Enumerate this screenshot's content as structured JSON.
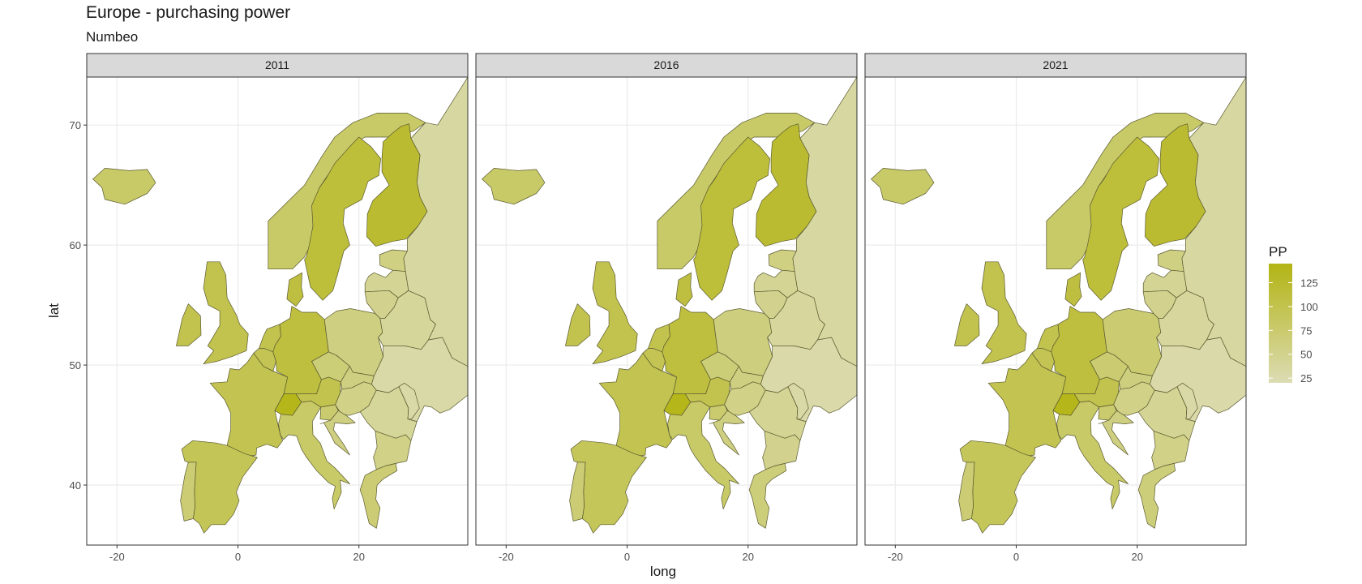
{
  "title": "Europe - purchasing power",
  "subtitle": "Numbeo",
  "chart_data": {
    "type": "heatmap",
    "subtype": "choropleth map, faceted by year",
    "title": "Europe - purchasing power",
    "subtitle": "Numbeo",
    "xlabel": "long",
    "ylabel": "lat",
    "xlim": [
      -25,
      38
    ],
    "ylim": [
      35,
      74
    ],
    "x_ticks": [
      -20,
      0,
      20
    ],
    "y_ticks": [
      40,
      50,
      60,
      70
    ],
    "grid": true,
    "facets": [
      "2011",
      "2016",
      "2021"
    ],
    "legend": {
      "title": "PP",
      "position": "right",
      "ticks": [
        25,
        50,
        75,
        100,
        125
      ],
      "range": [
        20,
        145
      ],
      "low_color": "#dcdcb4",
      "high_color": "#b3b414"
    },
    "colors": {
      "low": "#dcdcb4",
      "high": "#b3b414",
      "border": "#5a5a30"
    },
    "series": [
      {
        "year": "2011",
        "values": [
          {
            "country": "Iceland",
            "value": 80
          },
          {
            "country": "Norway",
            "value": 80
          },
          {
            "country": "Sweden",
            "value": 115
          },
          {
            "country": "Finland",
            "value": 122
          },
          {
            "country": "Denmark",
            "value": 110
          },
          {
            "country": "Ireland",
            "value": 100
          },
          {
            "country": "United Kingdom",
            "value": 100
          },
          {
            "country": "France",
            "value": 98
          },
          {
            "country": "Spain",
            "value": 93
          },
          {
            "country": "Portugal",
            "value": 70
          },
          {
            "country": "Netherlands",
            "value": 100
          },
          {
            "country": "Belgium",
            "value": 96
          },
          {
            "country": "Germany",
            "value": 112
          },
          {
            "country": "Switzerland",
            "value": 140
          },
          {
            "country": "Austria",
            "value": 100
          },
          {
            "country": "Italy",
            "value": 80
          },
          {
            "country": "Poland",
            "value": 60
          },
          {
            "country": "Czechia",
            "value": 68
          },
          {
            "country": "Slovakia",
            "value": 60
          },
          {
            "country": "Hungary",
            "value": 55
          },
          {
            "country": "Slovenia",
            "value": 75
          },
          {
            "country": "Croatia",
            "value": 60
          },
          {
            "country": "Romania",
            "value": 40
          },
          {
            "country": "Bulgaria",
            "value": 55
          },
          {
            "country": "Greece",
            "value": 70
          },
          {
            "country": "Estonia",
            "value": 58
          },
          {
            "country": "Latvia",
            "value": 45
          },
          {
            "country": "Lithuania",
            "value": 50
          },
          {
            "country": "Belarus",
            "value": 40
          },
          {
            "country": "Ukraine",
            "value": 30
          },
          {
            "country": "Russia",
            "value": 35
          },
          {
            "country": "Moldova",
            "value": 30
          }
        ]
      },
      {
        "year": "2016",
        "values": [
          {
            "country": "Iceland",
            "value": 80
          },
          {
            "country": "Norway",
            "value": 80
          },
          {
            "country": "Sweden",
            "value": 115
          },
          {
            "country": "Finland",
            "value": 122
          },
          {
            "country": "Denmark",
            "value": 110
          },
          {
            "country": "Ireland",
            "value": 100
          },
          {
            "country": "United Kingdom",
            "value": 100
          },
          {
            "country": "France",
            "value": 98
          },
          {
            "country": "Spain",
            "value": 90
          },
          {
            "country": "Portugal",
            "value": 70
          },
          {
            "country": "Netherlands",
            "value": 100
          },
          {
            "country": "Belgium",
            "value": 96
          },
          {
            "country": "Germany",
            "value": 112
          },
          {
            "country": "Switzerland",
            "value": 140
          },
          {
            "country": "Austria",
            "value": 100
          },
          {
            "country": "Italy",
            "value": 80
          },
          {
            "country": "Poland",
            "value": 62
          },
          {
            "country": "Czechia",
            "value": 68
          },
          {
            "country": "Slovakia",
            "value": 60
          },
          {
            "country": "Hungary",
            "value": 55
          },
          {
            "country": "Slovenia",
            "value": 75
          },
          {
            "country": "Croatia",
            "value": 60
          },
          {
            "country": "Romania",
            "value": 45
          },
          {
            "country": "Bulgaria",
            "value": 50
          },
          {
            "country": "Greece",
            "value": 65
          },
          {
            "country": "Estonia",
            "value": 58
          },
          {
            "country": "Latvia",
            "value": 45
          },
          {
            "country": "Lithuania",
            "value": 50
          },
          {
            "country": "Belarus",
            "value": 38
          },
          {
            "country": "Ukraine",
            "value": 28
          },
          {
            "country": "Russia",
            "value": 35
          },
          {
            "country": "Moldova",
            "value": 30
          }
        ]
      },
      {
        "year": "2021",
        "values": [
          {
            "country": "Iceland",
            "value": 80
          },
          {
            "country": "Norway",
            "value": 80
          },
          {
            "country": "Sweden",
            "value": 115
          },
          {
            "country": "Finland",
            "value": 122
          },
          {
            "country": "Denmark",
            "value": 110
          },
          {
            "country": "Ireland",
            "value": 100
          },
          {
            "country": "United Kingdom",
            "value": 100
          },
          {
            "country": "France",
            "value": 98
          },
          {
            "country": "Spain",
            "value": 90
          },
          {
            "country": "Portugal",
            "value": 70
          },
          {
            "country": "Netherlands",
            "value": 100
          },
          {
            "country": "Belgium",
            "value": 96
          },
          {
            "country": "Germany",
            "value": 112
          },
          {
            "country": "Switzerland",
            "value": 140
          },
          {
            "country": "Austria",
            "value": 100
          },
          {
            "country": "Italy",
            "value": 80
          },
          {
            "country": "Poland",
            "value": 72
          },
          {
            "country": "Czechia",
            "value": 72
          },
          {
            "country": "Slovakia",
            "value": 62
          },
          {
            "country": "Hungary",
            "value": 55
          },
          {
            "country": "Slovenia",
            "value": 75
          },
          {
            "country": "Croatia",
            "value": 60
          },
          {
            "country": "Romania",
            "value": 45
          },
          {
            "country": "Bulgaria",
            "value": 55
          },
          {
            "country": "Greece",
            "value": 65
          },
          {
            "country": "Estonia",
            "value": 58
          },
          {
            "country": "Latvia",
            "value": 45
          },
          {
            "country": "Lithuania",
            "value": 50
          },
          {
            "country": "Belarus",
            "value": 38
          },
          {
            "country": "Ukraine",
            "value": 28
          },
          {
            "country": "Russia",
            "value": 35
          },
          {
            "country": "Moldova",
            "value": 30
          }
        ]
      }
    ]
  }
}
